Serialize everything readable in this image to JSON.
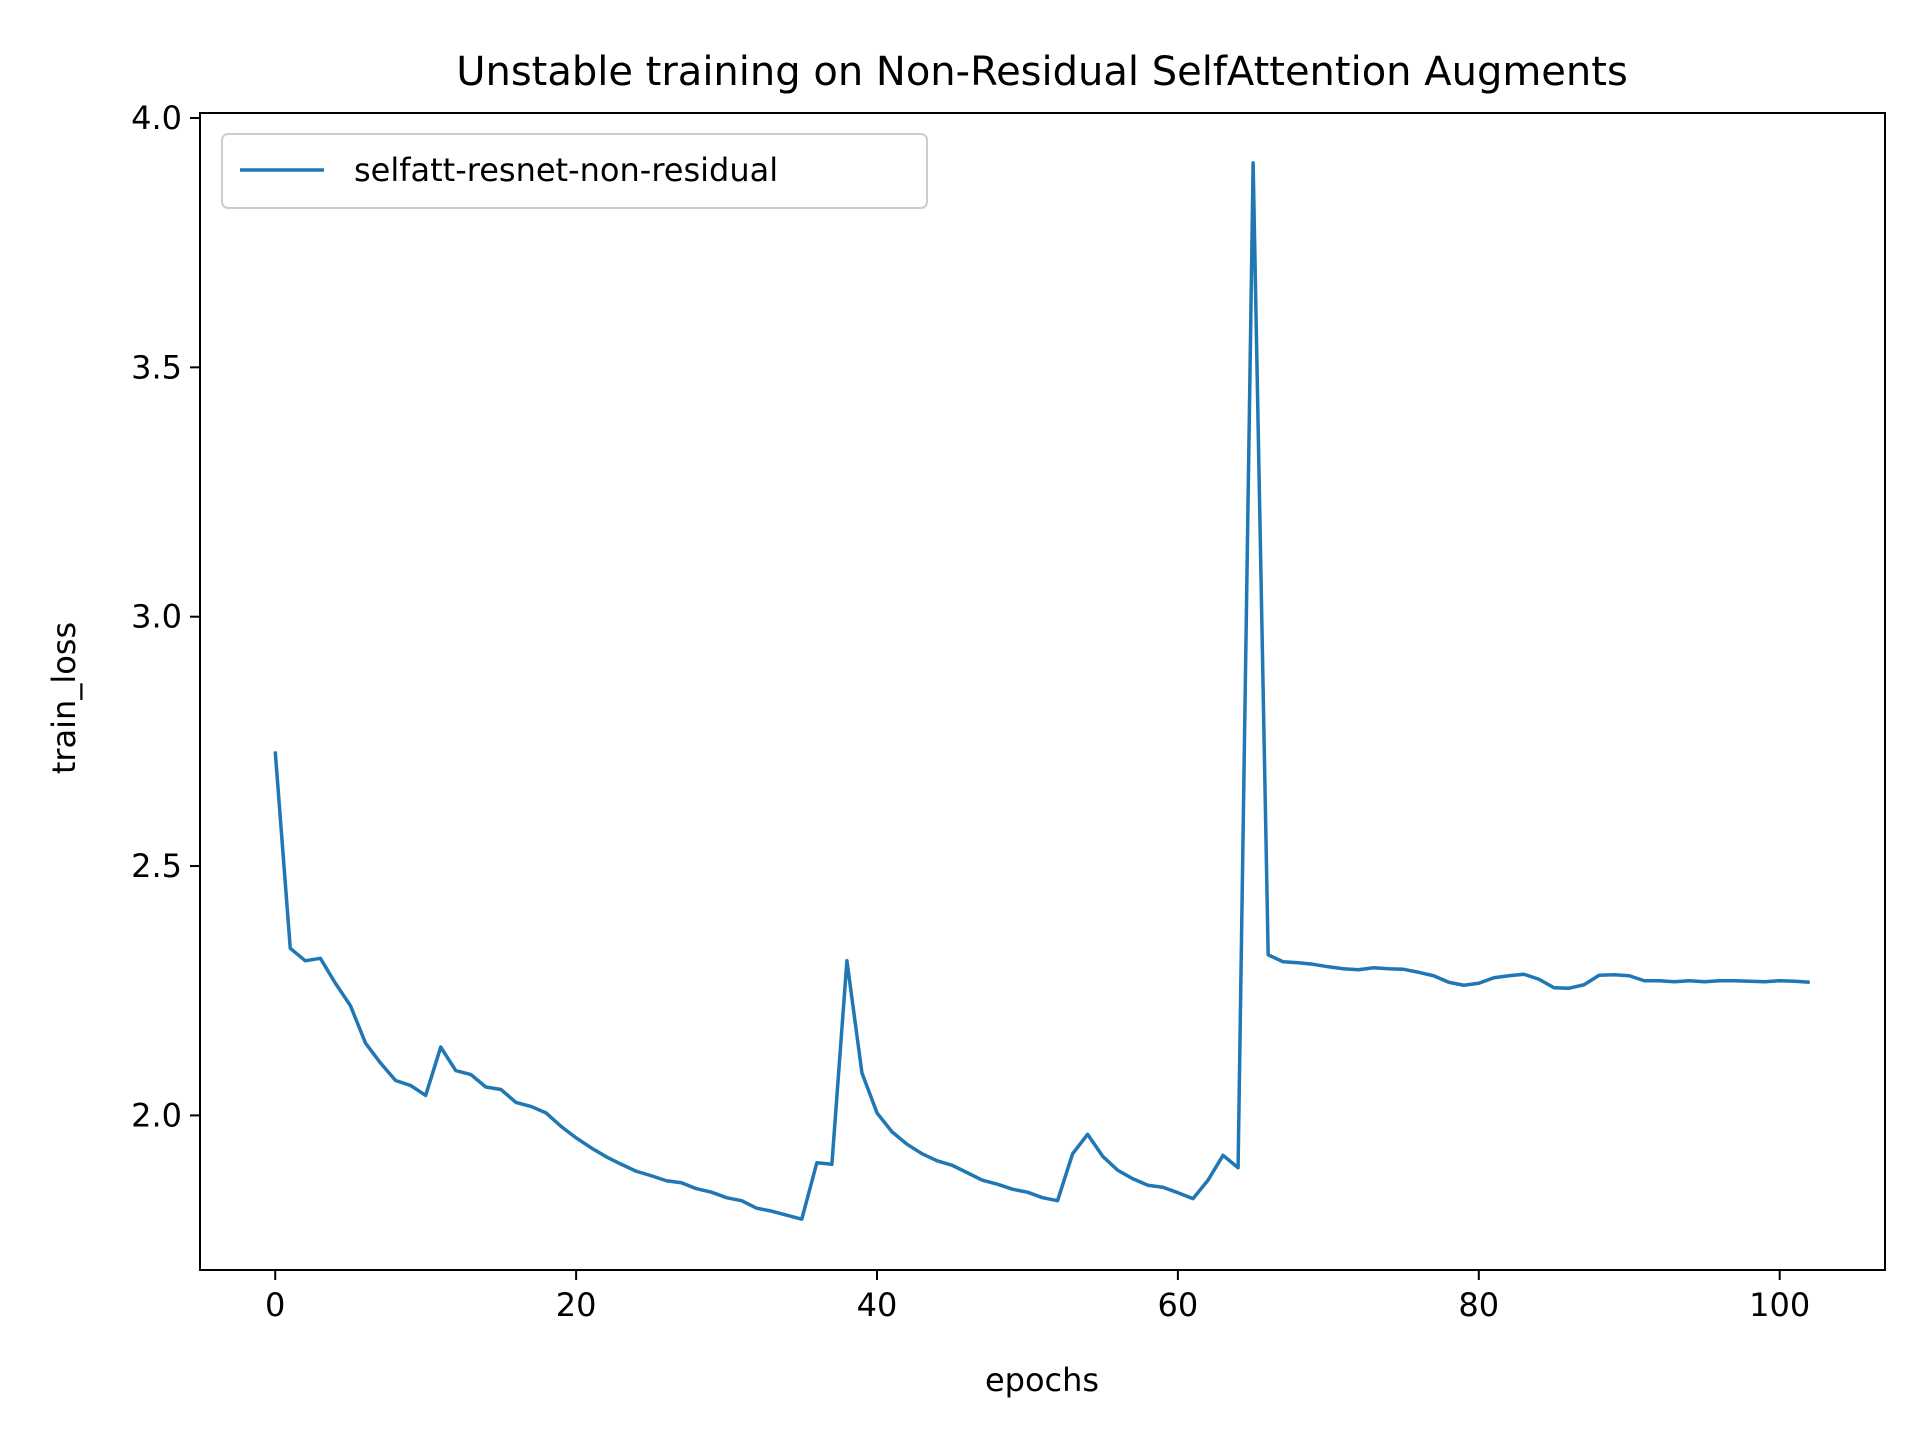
{
  "chart_data": {
    "type": "line",
    "title": "Unstable training on Non-Residual SelfAttention Augments",
    "xlabel": "epochs",
    "ylabel": "train_loss",
    "xlim": [
      -5,
      107
    ],
    "ylim": [
      1.69,
      4.01
    ],
    "xticks": [
      0,
      20,
      40,
      60,
      80,
      100
    ],
    "yticks": [
      2.0,
      2.5,
      3.0,
      3.5,
      4.0
    ],
    "ytick_labels": [
      "2.0",
      "2.5",
      "3.0",
      "3.5",
      "4.0"
    ],
    "xtick_labels": [
      "0",
      "20",
      "40",
      "60",
      "80",
      "100"
    ],
    "grid": false,
    "legend_position": "upper-left",
    "series": [
      {
        "name": "selfatt-resnet-non-residual",
        "color": "#1f77b4",
        "x": [
          0,
          1,
          2,
          3,
          4,
          5,
          6,
          7,
          8,
          9,
          10,
          11,
          12,
          13,
          14,
          15,
          16,
          17,
          18,
          19,
          20,
          21,
          22,
          23,
          24,
          25,
          26,
          27,
          28,
          29,
          30,
          31,
          32,
          33,
          34,
          35,
          36,
          37,
          38,
          39,
          40,
          41,
          42,
          43,
          44,
          45,
          46,
          47,
          48,
          49,
          50,
          51,
          52,
          53,
          54,
          55,
          56,
          57,
          58,
          59,
          60,
          61,
          62,
          63,
          64,
          65,
          66,
          67,
          68,
          69,
          70,
          71,
          72,
          73,
          74,
          75,
          76,
          77,
          78,
          79,
          80,
          81,
          82,
          83,
          84,
          85,
          86,
          87,
          88,
          89,
          90,
          91,
          92,
          93,
          94,
          95,
          96,
          97,
          98,
          99,
          100,
          101,
          102
        ],
        "y": [
          2.73,
          2.335,
          2.31,
          2.315,
          2.265,
          2.22,
          2.145,
          2.105,
          2.07,
          2.06,
          2.04,
          2.137,
          2.09,
          2.082,
          2.057,
          2.052,
          2.026,
          2.018,
          2.005,
          1.978,
          1.955,
          1.935,
          1.917,
          1.902,
          1.888,
          1.879,
          1.869,
          1.865,
          1.853,
          1.846,
          1.835,
          1.829,
          1.814,
          1.808,
          1.8,
          1.792,
          1.905,
          1.902,
          2.31,
          2.085,
          2.005,
          1.967,
          1.942,
          1.923,
          1.909,
          1.9,
          1.885,
          1.87,
          1.862,
          1.852,
          1.846,
          1.835,
          1.829,
          1.923,
          1.962,
          1.918,
          1.89,
          1.873,
          1.86,
          1.856,
          1.845,
          1.833,
          1.87,
          1.92,
          1.895,
          3.91,
          2.322,
          2.308,
          2.306,
          2.303,
          2.298,
          2.294,
          2.292,
          2.296,
          2.294,
          2.293,
          2.287,
          2.28,
          2.267,
          2.261,
          2.265,
          2.276,
          2.28,
          2.283,
          2.273,
          2.256,
          2.255,
          2.262,
          2.281,
          2.282,
          2.28,
          2.27,
          2.27,
          2.268,
          2.27,
          2.268,
          2.27,
          2.27,
          2.269,
          2.268,
          2.27,
          2.269,
          2.267
        ]
      }
    ]
  }
}
